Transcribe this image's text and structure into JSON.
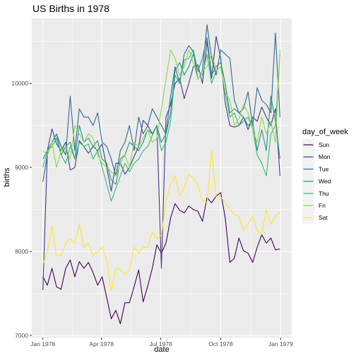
{
  "chart_data": {
    "type": "line",
    "title": "US Births in 1978",
    "xlabel": "date",
    "ylabel": "births",
    "x_ticks": [
      {
        "label": "Jan 1978",
        "date": "1978-01-01"
      },
      {
        "label": "Apr 1978",
        "date": "1978-04-01"
      },
      {
        "label": "Jul 1978",
        "date": "1978-07-01"
      },
      {
        "label": "Oct 1978",
        "date": "1978-10-01"
      },
      {
        "label": "Jan 1979",
        "date": "1979-01-01"
      }
    ],
    "y_ticks": [
      7000,
      8000,
      9000,
      10000
    ],
    "xlim": [
      "1977-12-15",
      "1979-01-18"
    ],
    "ylim": [
      6975,
      10775
    ],
    "legend": {
      "title": "day_of_week",
      "position": "right"
    },
    "grid": true,
    "x": [
      "1978-01-01",
      "1978-01-08",
      "1978-01-15",
      "1978-01-22",
      "1978-01-29",
      "1978-02-05",
      "1978-02-12",
      "1978-02-19",
      "1978-02-26",
      "1978-03-05",
      "1978-03-12",
      "1978-03-19",
      "1978-03-26",
      "1978-04-02",
      "1978-04-09",
      "1978-04-16",
      "1978-04-23",
      "1978-04-30",
      "1978-05-07",
      "1978-05-14",
      "1978-05-21",
      "1978-05-28",
      "1978-06-04",
      "1978-06-11",
      "1978-06-18",
      "1978-06-25",
      "1978-07-02",
      "1978-07-09",
      "1978-07-16",
      "1978-07-23",
      "1978-07-30",
      "1978-08-06",
      "1978-08-13",
      "1978-08-20",
      "1978-08-27",
      "1978-09-03",
      "1978-09-10",
      "1978-09-17",
      "1978-09-24",
      "1978-10-01",
      "1978-10-08",
      "1978-10-15",
      "1978-10-22",
      "1978-10-29",
      "1978-11-05",
      "1978-11-12",
      "1978-11-19",
      "1978-11-26",
      "1978-12-03",
      "1978-12-10",
      "1978-12-17",
      "1978-12-24",
      "1978-12-31"
    ],
    "series": [
      {
        "name": "Sun",
        "color": "#440154",
        "values": [
          7700,
          7600,
          7800,
          7580,
          7550,
          7800,
          7900,
          7700,
          7880,
          7800,
          7870,
          7750,
          7600,
          7700,
          7450,
          7200,
          7300,
          7140,
          7390,
          7390,
          7580,
          7780,
          7400,
          7590,
          7800,
          8080,
          7980,
          8100,
          8400,
          8570,
          8490,
          8460,
          8540,
          8500,
          8480,
          8360,
          8640,
          8580,
          8660,
          8700,
          8400,
          7870,
          7920,
          8160,
          8010,
          7980,
          7870,
          8050,
          8200,
          8100,
          8160,
          8020,
          8030
        ]
      },
      {
        "name": "Mon",
        "color": "#443983",
        "values": [
          7540,
          9200,
          9460,
          9280,
          9200,
          9300,
          8970,
          9000,
          9320,
          9250,
          9170,
          9250,
          9200,
          9280,
          9000,
          8720,
          9050,
          9050,
          8920,
          9000,
          9130,
          9250,
          9560,
          9500,
          9400,
          9500,
          7800,
          9600,
          9750,
          10000,
          10060,
          9820,
          10000,
          10200,
          10220,
          10000,
          10500,
          10060,
          10560,
          10300,
          9770,
          9500,
          9480,
          9500,
          9600,
          9450,
          9600,
          9550,
          9720,
          9600,
          9500,
          9700,
          8900
        ]
      },
      {
        "name": "Tue",
        "color": "#31688e",
        "values": [
          8830,
          9150,
          9300,
          9400,
          9250,
          9150,
          9850,
          9200,
          9700,
          9600,
          9600,
          9500,
          9650,
          9300,
          9250,
          9100,
          8900,
          9200,
          9300,
          9500,
          9200,
          9600,
          9400,
          9500,
          9700,
          9600,
          9500,
          9400,
          9850,
          10200,
          10000,
          10350,
          10450,
          10380,
          10050,
          10150,
          10700,
          10300,
          10100,
          10400,
          10350,
          10300,
          9800,
          9650,
          9700,
          9900,
          9500,
          9950,
          9800,
          9750,
          9650,
          10600,
          9600
        ]
      },
      {
        "name": "Wed",
        "color": "#21918c",
        "values": [
          9100,
          9200,
          9300,
          9400,
          9150,
          9250,
          9300,
          9100,
          9500,
          9300,
          9350,
          9250,
          9320,
          9100,
          9050,
          8850,
          8800,
          9100,
          9150,
          9300,
          9250,
          9200,
          9300,
          9450,
          9400,
          9500,
          9300,
          9400,
          9650,
          10150,
          10250,
          10100,
          10200,
          10350,
          10150,
          10300,
          10550,
          10100,
          10200,
          10250,
          10000,
          9650,
          9700,
          9650,
          9600,
          9500,
          9550,
          9200,
          9450,
          9200,
          9850,
          9550,
          9100
        ]
      },
      {
        "name": "Thu",
        "color": "#35b779",
        "values": [
          9000,
          9200,
          9250,
          9350,
          9150,
          9050,
          9250,
          9100,
          9300,
          9250,
          9280,
          9100,
          9200,
          9000,
          8800,
          8600,
          8750,
          8900,
          9050,
          8950,
          9050,
          9100,
          9200,
          9250,
          9380,
          9500,
          9200,
          9300,
          9550,
          10100,
          10000,
          10280,
          10300,
          10400,
          10150,
          10100,
          10350,
          10000,
          10150,
          10200,
          9900,
          9600,
          9650,
          9500,
          9550,
          9600,
          9450,
          9150,
          9050,
          8900,
          9400,
          9500,
          10350
        ]
      },
      {
        "name": "Fri",
        "color": "#8fd744",
        "values": [
          9200,
          9150,
          9300,
          9000,
          9200,
          9250,
          9100,
          9500,
          9400,
          9300,
          9400,
          9350,
          9150,
          9050,
          9000,
          8950,
          8900,
          9050,
          9150,
          9000,
          9300,
          9250,
          9350,
          9450,
          9300,
          9350,
          9700,
          10050,
          10400,
          10300,
          10100,
          10200,
          10400,
          10250,
          10050,
          10150,
          10200,
          10350,
          10150,
          10200,
          9900,
          9800,
          9500,
          9580,
          9750,
          9650,
          9450,
          9300,
          9600,
          9400,
          9550,
          9300,
          10400
        ]
      },
      {
        "name": "Sat",
        "color": "#fde725",
        "values": [
          7850,
          8000,
          8300,
          7950,
          7950,
          8100,
          8150,
          8100,
          8320,
          8050,
          8100,
          7950,
          8000,
          8050,
          7900,
          7530,
          7800,
          7780,
          7730,
          7780,
          8050,
          7980,
          8050,
          8050,
          8230,
          8150,
          8200,
          8600,
          8800,
          8900,
          8660,
          8760,
          8920,
          8870,
          8780,
          8610,
          8580,
          9200,
          8650,
          8650,
          8580,
          8500,
          8440,
          8420,
          8250,
          8330,
          8420,
          8250,
          8200,
          8500,
          8320,
          8420,
          8470
        ]
      }
    ]
  }
}
